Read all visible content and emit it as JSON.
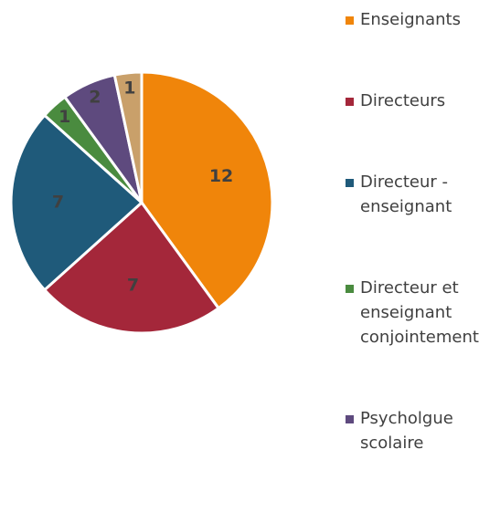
{
  "chart_data": {
    "type": "pie",
    "categories": [
      "Enseignants",
      "Directeurs",
      "Directeur - enseignant",
      "Directeur et enseignant conjointement",
      "Psycholgue scolaire",
      null
    ],
    "values": [
      12,
      7,
      7,
      1,
      2,
      1
    ],
    "colors": [
      "#f0850a",
      "#a4273a",
      "#1f5a7a",
      "#4a8b3f",
      "#5e4a7e",
      "#c9a06a"
    ],
    "legend": "right"
  }
}
